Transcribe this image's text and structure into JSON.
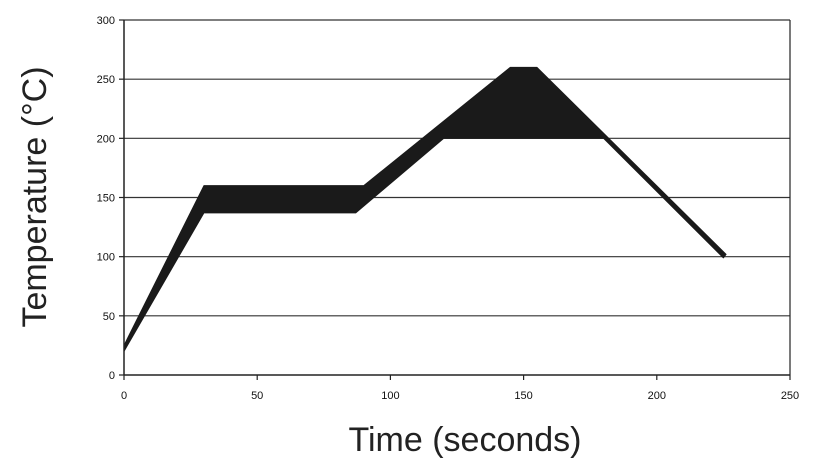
{
  "chart_data": {
    "type": "area",
    "title": "",
    "xlabel": "Time (seconds)",
    "ylabel": "Temperature (°C)",
    "xlim": [
      0,
      250
    ],
    "ylim": [
      0,
      300
    ],
    "x_ticks": [
      0,
      50,
      100,
      150,
      200,
      250
    ],
    "y_ticks": [
      0,
      50,
      100,
      150,
      200,
      250,
      300
    ],
    "x_tick_labels": [
      "0",
      "50",
      "100",
      "150",
      "200",
      "250"
    ],
    "y_tick_labels": [
      "0",
      "50",
      "100",
      "150",
      "200",
      "250",
      "300"
    ],
    "grid": "horizontal",
    "legend": "none",
    "fill_color": "#1a1a1a",
    "series": [
      {
        "upper": [
          {
            "x": 0,
            "y": 25
          },
          {
            "x": 30,
            "y": 160
          },
          {
            "x": 90,
            "y": 160
          },
          {
            "x": 145,
            "y": 260
          },
          {
            "x": 155,
            "y": 260
          },
          {
            "x": 226,
            "y": 102
          }
        ],
        "lower": [
          {
            "x": 0,
            "y": 20
          },
          {
            "x": 30,
            "y": 137
          },
          {
            "x": 87,
            "y": 137
          },
          {
            "x": 120,
            "y": 200
          },
          {
            "x": 180,
            "y": 200
          },
          {
            "x": 225,
            "y": 99
          }
        ]
      }
    ]
  }
}
